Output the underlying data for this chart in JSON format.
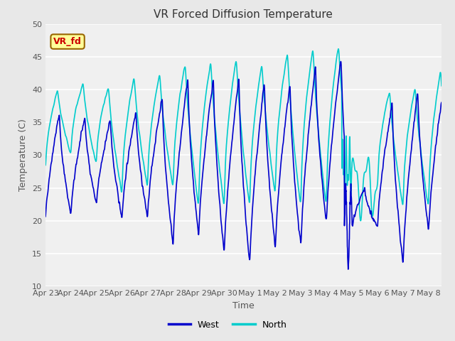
{
  "title": "VR Forced Diffusion Temperature",
  "xlabel": "Time",
  "ylabel": "Temperature (C)",
  "ylim": [
    10,
    50
  ],
  "background_color": "#e8e8e8",
  "plot_bg_color": "#f0f0f0",
  "west_color": "#0000cc",
  "north_color": "#00cccc",
  "west_linewidth": 1.2,
  "north_linewidth": 1.2,
  "label_box_text": "VR_fd",
  "label_box_facecolor": "#ffff99",
  "label_box_edgecolor": "#996600",
  "label_box_textcolor": "#cc0000",
  "xtick_labels": [
    "Apr 23",
    "Apr 24",
    "Apr 25",
    "Apr 26",
    "Apr 27",
    "Apr 28",
    "Apr 29",
    "Apr 30",
    "May 1",
    "May 2",
    "May 3",
    "May 4",
    "May 5",
    "May 6",
    "May 7",
    "May 8"
  ],
  "ytick_vals": [
    10,
    15,
    20,
    25,
    30,
    35,
    40,
    45,
    50
  ],
  "legend_west": "West",
  "legend_north": "North",
  "title_fontsize": 11,
  "axis_fontsize": 9,
  "tick_fontsize": 8
}
